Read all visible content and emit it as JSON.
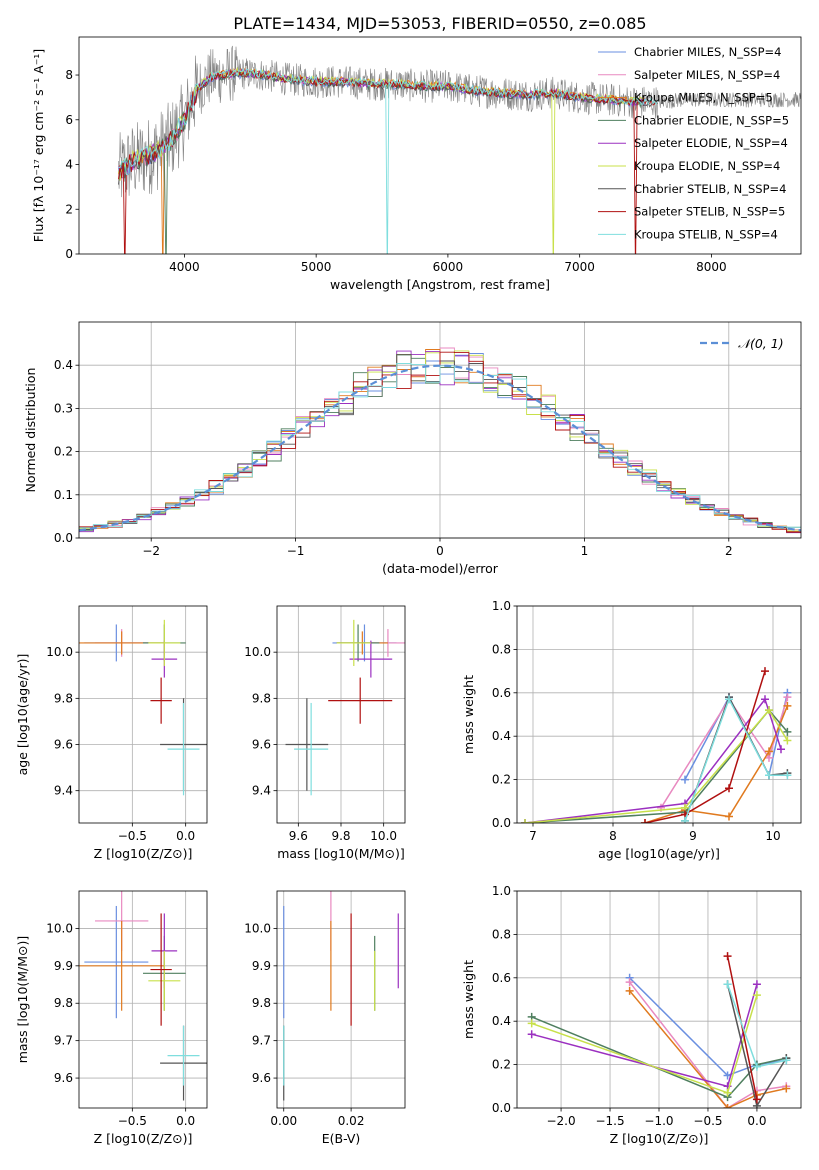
{
  "title": "PLATE=1434, MJD=53053, FIBERID=0550, z=0.085",
  "colors": {
    "Chabrier MILES": "#6a8fe0",
    "Salpeter MILES": "#e889c0",
    "Kroupa MILES": "#e07a1f",
    "Chabrier ELODIE": "#4f7f5f",
    "Salpeter ELODIE": "#9b30c0",
    "Kroupa ELODIE": "#c8e04a",
    "Chabrier STELIB": "#555555",
    "Salpeter STELIB": "#b01010",
    "Kroupa STELIB": "#7fdede",
    "data": "#808080",
    "gauss": "#5b8fd6"
  },
  "chart_data": [
    {
      "id": "spectrum",
      "type": "line",
      "xlabel": "wavelength [Angstrom, rest frame]",
      "ylabel": "Flux [fλ 10⁻¹⁷ erg cm⁻² s⁻¹ A⁻¹]",
      "xlim": [
        3200,
        8680
      ],
      "ylim": [
        0,
        9.7
      ],
      "xticks": [
        4000,
        5000,
        6000,
        7000,
        8000
      ],
      "yticks": [
        0,
        2,
        4,
        6,
        8
      ],
      "legend_position": "right",
      "legend": [
        "Chabrier MILES, N_SSP=4",
        "Salpeter MILES, N_SSP=4",
        "Kroupa MILES, N_SSP=5",
        "Chabrier ELODIE, N_SSP=5",
        "Salpeter ELODIE, N_SSP=4",
        "Kroupa ELODIE, N_SSP=4",
        "Chabrier STELIB, N_SSP=4",
        "Salpeter STELIB, N_SSP=5",
        "Kroupa STELIB, N_SSP=4"
      ],
      "continuum": {
        "x": [
          3500,
          3600,
          3700,
          3800,
          3900,
          4000,
          4100,
          4200,
          4400,
          4600,
          4800,
          5000,
          5200,
          5400,
          5600,
          5800,
          6000,
          6200,
          6400,
          6600,
          6800,
          7000,
          7200,
          7400,
          7600,
          7800,
          8000,
          8200,
          8400
        ],
        "y": [
          3.6,
          4.1,
          4.3,
          4.6,
          5.1,
          6.0,
          7.4,
          7.9,
          8.1,
          8.0,
          7.8,
          7.7,
          7.7,
          7.6,
          7.6,
          7.5,
          7.5,
          7.3,
          7.2,
          7.1,
          7.2,
          7.0,
          6.9,
          6.8,
          6.8,
          6.9,
          6.9,
          6.9,
          6.9
        ]
      }
    },
    {
      "id": "residuals",
      "type": "histogram",
      "xlabel": "(data-model)/error",
      "ylabel": "Normed distribution",
      "xlim": [
        -2.5,
        2.5
      ],
      "ylim": [
        0,
        0.5
      ],
      "xticks": [
        -2,
        -1,
        0,
        1,
        2
      ],
      "yticks": [
        0,
        0.1,
        0.2,
        0.3,
        0.4
      ],
      "grid": true,
      "legend": [
        "𝒩(0, 1)"
      ],
      "legend_position": "top-right",
      "bin_width": 0.1
    },
    {
      "id": "age-vs-Z",
      "type": "scatter",
      "xlabel": "Z [log10(Z/Z⊙)]",
      "ylabel": "age  [log10(age/yr)]",
      "xlim": [
        -1.0,
        0.2
      ],
      "ylim": [
        9.26,
        10.2
      ],
      "xticks": [
        -0.5,
        0.0
      ],
      "yticks": [
        9.4,
        9.6,
        9.8,
        10.0
      ],
      "grid": true,
      "points": [
        {
          "model": "Chabrier MILES",
          "x": -0.65,
          "y": 10.04,
          "xerr": 0.3,
          "yerr": 0.08
        },
        {
          "model": "Salpeter MILES",
          "x": -0.6,
          "y": 10.04,
          "xerr": 0.25,
          "yerr": 0.06
        },
        {
          "model": "Kroupa MILES",
          "x": -0.6,
          "y": 10.04,
          "xerr": 0.4,
          "yerr": 0.05
        },
        {
          "model": "Chabrier ELODIE",
          "x": -0.2,
          "y": 10.04,
          "xerr": 0.2,
          "yerr": 0.08
        },
        {
          "model": "Salpeter ELODIE",
          "x": -0.2,
          "y": 9.97,
          "xerr": 0.12,
          "yerr": 0.08
        },
        {
          "model": "Kroupa ELODIE",
          "x": -0.2,
          "y": 10.04,
          "xerr": 0.15,
          "yerr": 0.1
        },
        {
          "model": "Chabrier STELIB",
          "x": -0.02,
          "y": 9.6,
          "xerr": 0.22,
          "yerr": 0.2
        },
        {
          "model": "Salpeter STELIB",
          "x": -0.23,
          "y": 9.79,
          "xerr": 0.1,
          "yerr": 0.1
        },
        {
          "model": "Kroupa STELIB",
          "x": -0.02,
          "y": 9.58,
          "xerr": 0.15,
          "yerr": 0.2
        }
      ]
    },
    {
      "id": "age-vs-mass",
      "type": "scatter",
      "xlabel": "mass [log10(M/M⊙)]",
      "ylabel": "",
      "xlim": [
        9.5,
        10.1
      ],
      "ylim": [
        9.26,
        10.2
      ],
      "xticks": [
        9.6,
        9.8,
        10.0
      ],
      "yticks": [
        9.4,
        9.6,
        9.8,
        10.0
      ],
      "grid": true,
      "points": [
        {
          "model": "Chabrier MILES",
          "x": 9.91,
          "y": 10.04,
          "xerr": 0.15,
          "yerr": 0.08
        },
        {
          "model": "Salpeter MILES",
          "x": 10.02,
          "y": 10.04,
          "xerr": 0.08,
          "yerr": 0.06
        },
        {
          "model": "Kroupa MILES",
          "x": 9.9,
          "y": 10.04,
          "xerr": 0.12,
          "yerr": 0.05
        },
        {
          "model": "Chabrier ELODIE",
          "x": 9.88,
          "y": 10.04,
          "xerr": 0.1,
          "yerr": 0.08
        },
        {
          "model": "Salpeter ELODIE",
          "x": 9.94,
          "y": 9.97,
          "xerr": 0.1,
          "yerr": 0.08
        },
        {
          "model": "Kroupa ELODIE",
          "x": 9.86,
          "y": 10.04,
          "xerr": 0.08,
          "yerr": 0.1
        },
        {
          "model": "Chabrier STELIB",
          "x": 9.64,
          "y": 9.6,
          "xerr": 0.1,
          "yerr": 0.2
        },
        {
          "model": "Salpeter STELIB",
          "x": 9.89,
          "y": 9.79,
          "xerr": 0.15,
          "yerr": 0.1
        },
        {
          "model": "Kroupa STELIB",
          "x": 9.66,
          "y": 9.58,
          "xerr": 0.08,
          "yerr": 0.2
        }
      ]
    },
    {
      "id": "weight-vs-age",
      "type": "line",
      "xlabel": "age  [log10(age/yr)]",
      "ylabel": "mass weight",
      "xlim": [
        6.8,
        10.35
      ],
      "ylim": [
        0,
        1.0
      ],
      "xticks": [
        7,
        8,
        9,
        10
      ],
      "yticks": [
        0.0,
        0.2,
        0.4,
        0.6,
        0.8,
        1.0
      ],
      "grid": true,
      "series": [
        {
          "name": "Chabrier MILES",
          "x": [
            8.9,
            9.45,
            9.95,
            10.18
          ],
          "y": [
            0.2,
            0.58,
            0.22,
            0.6
          ]
        },
        {
          "name": "Salpeter MILES",
          "x": [
            8.6,
            9.45,
            9.95,
            10.18
          ],
          "y": [
            0.07,
            0.57,
            0.3,
            0.58
          ]
        },
        {
          "name": "Kroupa MILES",
          "x": [
            8.4,
            8.9,
            9.45,
            9.95,
            10.18
          ],
          "y": [
            0.0,
            0.06,
            0.03,
            0.33,
            0.54
          ]
        },
        {
          "name": "Chabrier ELODIE",
          "x": [
            6.9,
            8.9,
            9.95,
            10.18
          ],
          "y": [
            0.0,
            0.05,
            0.52,
            0.42
          ]
        },
        {
          "name": "Salpeter ELODIE",
          "x": [
            6.9,
            8.9,
            9.9,
            10.1
          ],
          "y": [
            0.0,
            0.09,
            0.57,
            0.34
          ]
        },
        {
          "name": "Kroupa ELODIE",
          "x": [
            6.9,
            8.9,
            9.95,
            10.18
          ],
          "y": [
            0.0,
            0.07,
            0.52,
            0.38
          ]
        },
        {
          "name": "Chabrier STELIB",
          "x": [
            8.9,
            9.45,
            9.95,
            10.18
          ],
          "y": [
            0.01,
            0.58,
            0.22,
            0.23
          ]
        },
        {
          "name": "Salpeter STELIB",
          "x": [
            8.4,
            8.9,
            9.45,
            9.9
          ],
          "y": [
            0.0,
            0.04,
            0.16,
            0.7
          ]
        },
        {
          "name": "Kroupa STELIB",
          "x": [
            8.9,
            9.45,
            9.95,
            10.18
          ],
          "y": [
            0.01,
            0.57,
            0.22,
            0.22
          ]
        }
      ]
    },
    {
      "id": "mass-vs-Z",
      "type": "scatter",
      "xlabel": "Z [log10(Z/Z⊙)]",
      "ylabel": "mass [log10(M/M⊙)]",
      "xlim": [
        -1.0,
        0.2
      ],
      "ylim": [
        9.52,
        10.1
      ],
      "xticks": [
        -0.5,
        0.0
      ],
      "yticks": [
        9.6,
        9.7,
        9.8,
        9.9,
        10.0
      ],
      "grid": true,
      "points": [
        {
          "model": "Chabrier MILES",
          "x": -0.65,
          "y": 9.91,
          "xerr": 0.3,
          "yerr": 0.15
        },
        {
          "model": "Salpeter MILES",
          "x": -0.6,
          "y": 10.02,
          "xerr": 0.25,
          "yerr": 0.08
        },
        {
          "model": "Kroupa MILES",
          "x": -0.6,
          "y": 9.9,
          "xerr": 0.4,
          "yerr": 0.12
        },
        {
          "model": "Chabrier ELODIE",
          "x": -0.2,
          "y": 9.88,
          "xerr": 0.2,
          "yerr": 0.1
        },
        {
          "model": "Salpeter ELODIE",
          "x": -0.2,
          "y": 9.94,
          "xerr": 0.12,
          "yerr": 0.1
        },
        {
          "model": "Kroupa ELODIE",
          "x": -0.2,
          "y": 9.86,
          "xerr": 0.15,
          "yerr": 0.08
        },
        {
          "model": "Chabrier STELIB",
          "x": -0.02,
          "y": 9.64,
          "xerr": 0.22,
          "yerr": 0.1
        },
        {
          "model": "Salpeter STELIB",
          "x": -0.23,
          "y": 9.89,
          "xerr": 0.1,
          "yerr": 0.15
        },
        {
          "model": "Kroupa STELIB",
          "x": -0.02,
          "y": 9.66,
          "xerr": 0.15,
          "yerr": 0.08
        }
      ]
    },
    {
      "id": "mass-vs-ebv",
      "type": "scatter",
      "xlabel": "E(B-V)",
      "ylabel": "",
      "xlim": [
        -0.002,
        0.036
      ],
      "ylim": [
        9.52,
        10.1
      ],
      "xticks": [
        0.0,
        0.02
      ],
      "yticks": [
        9.6,
        9.7,
        9.8,
        9.9,
        10.0
      ],
      "grid": true,
      "points": [
        {
          "model": "Chabrier MILES",
          "x": 0.0,
          "y": 9.91,
          "yerr": 0.15
        },
        {
          "model": "Salpeter MILES",
          "x": 0.014,
          "y": 10.02,
          "yerr": 0.08
        },
        {
          "model": "Kroupa MILES",
          "x": 0.014,
          "y": 9.9,
          "yerr": 0.12
        },
        {
          "model": "Chabrier ELODIE",
          "x": 0.027,
          "y": 9.88,
          "yerr": 0.1
        },
        {
          "model": "Salpeter ELODIE",
          "x": 0.034,
          "y": 9.94,
          "yerr": 0.1
        },
        {
          "model": "Kroupa ELODIE",
          "x": 0.027,
          "y": 9.86,
          "yerr": 0.08
        },
        {
          "model": "Chabrier STELIB",
          "x": 0.0,
          "y": 9.64,
          "yerr": 0.1
        },
        {
          "model": "Salpeter STELIB",
          "x": 0.02,
          "y": 9.89,
          "yerr": 0.15
        },
        {
          "model": "Kroupa STELIB",
          "x": 0.0,
          "y": 9.66,
          "yerr": 0.08
        }
      ]
    },
    {
      "id": "weight-vs-Z",
      "type": "line",
      "xlabel": "Z [log10(Z/Z⊙)]",
      "ylabel": "mass weight",
      "xlim": [
        -2.45,
        0.45
      ],
      "ylim": [
        0,
        1.0
      ],
      "xticks": [
        -2.0,
        -1.5,
        -1.0,
        -0.5,
        0.0
      ],
      "yticks": [
        0.0,
        0.2,
        0.4,
        0.6,
        0.8,
        1.0
      ],
      "grid": true,
      "series": [
        {
          "name": "Chabrier MILES",
          "x": [
            -1.3,
            -0.3,
            0.0,
            0.3
          ],
          "y": [
            0.6,
            0.15,
            0.2,
            0.22
          ]
        },
        {
          "name": "Salpeter MILES",
          "x": [
            -1.3,
            -0.3,
            0.0,
            0.3
          ],
          "y": [
            0.58,
            0.0,
            0.08,
            0.1
          ]
        },
        {
          "name": "Kroupa MILES",
          "x": [
            -1.3,
            -0.3,
            0.0,
            0.3
          ],
          "y": [
            0.54,
            0.0,
            0.06,
            0.09
          ]
        },
        {
          "name": "Chabrier ELODIE",
          "x": [
            -2.3,
            -0.3,
            0.0,
            0.3
          ],
          "y": [
            0.42,
            0.05,
            0.2,
            0.23
          ]
        },
        {
          "name": "Salpeter ELODIE",
          "x": [
            -2.3,
            -0.3,
            0.0
          ],
          "y": [
            0.34,
            0.1,
            0.57
          ]
        },
        {
          "name": "Kroupa ELODIE",
          "x": [
            -2.3,
            -0.3,
            0.0
          ],
          "y": [
            0.39,
            0.07,
            0.52
          ]
        },
        {
          "name": "Chabrier STELIB",
          "x": [
            -0.3,
            0.0,
            0.3
          ],
          "y": [
            0.57,
            0.01,
            0.23
          ]
        },
        {
          "name": "Salpeter STELIB",
          "x": [
            -0.3,
            0.0
          ],
          "y": [
            0.7,
            0.04
          ]
        },
        {
          "name": "Kroupa STELIB",
          "x": [
            -0.3,
            0.0,
            0.3
          ],
          "y": [
            0.57,
            0.19,
            0.22
          ]
        }
      ]
    }
  ]
}
